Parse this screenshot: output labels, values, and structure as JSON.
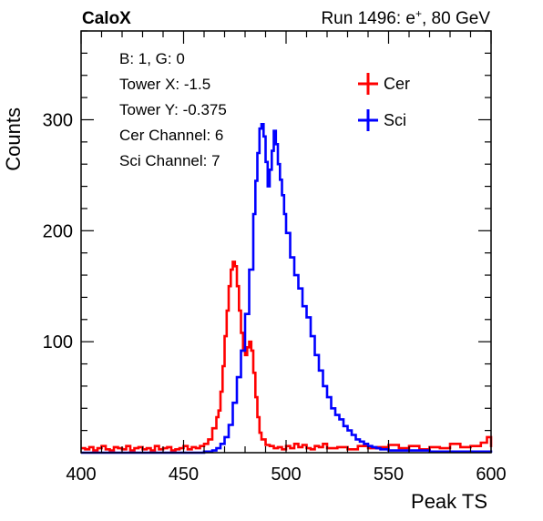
{
  "header": {
    "left_title": "CaloX",
    "run_prefix": "Run 1496: e",
    "run_sup": "+",
    "run_suffix": ", 80 GeV"
  },
  "info_box": {
    "lines": [
      "B: 1, G: 0",
      "Tower X: -1.5",
      "Tower Y: -0.375",
      "Cer Channel: 6",
      "Sci Channel: 7"
    ]
  },
  "chart_data": {
    "type": "line",
    "xlabel": "Peak TS",
    "ylabel": "Counts",
    "xlim": [
      400,
      600
    ],
    "ylim": [
      0,
      380
    ],
    "x_ticks": [
      400,
      450,
      500,
      550,
      600
    ],
    "y_ticks": [
      100,
      200,
      300
    ],
    "grid": false,
    "legend_position": "top-right",
    "series": [
      {
        "name": "Cer",
        "color": "#ff0000",
        "x": [
          400,
          402,
          404,
          406,
          408,
          410,
          412,
          414,
          416,
          418,
          420,
          422,
          424,
          426,
          428,
          430,
          432,
          434,
          436,
          438,
          440,
          442,
          444,
          446,
          448,
          450,
          452,
          454,
          456,
          458,
          460,
          462,
          464,
          466,
          467,
          468,
          469,
          470,
          471,
          472,
          473,
          474,
          475,
          476,
          477,
          478,
          479,
          480,
          481,
          482,
          483,
          484,
          485,
          486,
          487,
          488,
          490,
          492,
          494,
          496,
          498,
          500,
          502,
          504,
          506,
          508,
          510,
          512,
          514,
          516,
          518,
          520,
          525,
          530,
          535,
          540,
          545,
          550,
          555,
          560,
          565,
          570,
          575,
          580,
          585,
          590,
          595,
          598,
          600
        ],
        "values": [
          4,
          3,
          5,
          2,
          4,
          6,
          3,
          2,
          5,
          4,
          3,
          6,
          2,
          4,
          5,
          3,
          4,
          2,
          6,
          3,
          4,
          5,
          2,
          3,
          4,
          6,
          3,
          5,
          4,
          6,
          8,
          12,
          22,
          32,
          38,
          55,
          78,
          105,
          128,
          150,
          165,
          172,
          168,
          150,
          128,
          108,
          92,
          88,
          95,
          100,
          92,
          72,
          50,
          32,
          18,
          12,
          7,
          6,
          4,
          5,
          3,
          6,
          4,
          8,
          5,
          7,
          4,
          3,
          6,
          5,
          8,
          4,
          5,
          3,
          6,
          4,
          5,
          7,
          4,
          6,
          3,
          5,
          4,
          8,
          5,
          6,
          9,
          14,
          5
        ]
      },
      {
        "name": "Sci",
        "color": "#0000ff",
        "x": [
          400,
          410,
          420,
          430,
          440,
          450,
          455,
          460,
          464,
          466,
          468,
          470,
          472,
          474,
          476,
          478,
          480,
          482,
          484,
          485,
          486,
          487,
          488,
          489,
          490,
          491,
          492,
          493,
          494,
          495,
          496,
          497,
          498,
          499,
          500,
          502,
          504,
          506,
          508,
          510,
          512,
          514,
          516,
          518,
          520,
          522,
          524,
          526,
          528,
          530,
          532,
          534,
          536,
          538,
          540,
          542,
          544,
          546,
          548,
          550,
          560,
          570,
          580,
          590,
          600
        ],
        "values": [
          0,
          0,
          0,
          0,
          0,
          0,
          0,
          1,
          2,
          4,
          8,
          14,
          25,
          45,
          68,
          92,
          125,
          165,
          215,
          245,
          270,
          292,
          296,
          285,
          262,
          240,
          255,
          272,
          290,
          278,
          260,
          246,
          232,
          215,
          198,
          176,
          160,
          148,
          132,
          122,
          105,
          88,
          74,
          60,
          50,
          40,
          34,
          30,
          24,
          20,
          16,
          12,
          10,
          8,
          6,
          5,
          4,
          3,
          3,
          2,
          2,
          1,
          1,
          1,
          0
        ]
      }
    ]
  }
}
